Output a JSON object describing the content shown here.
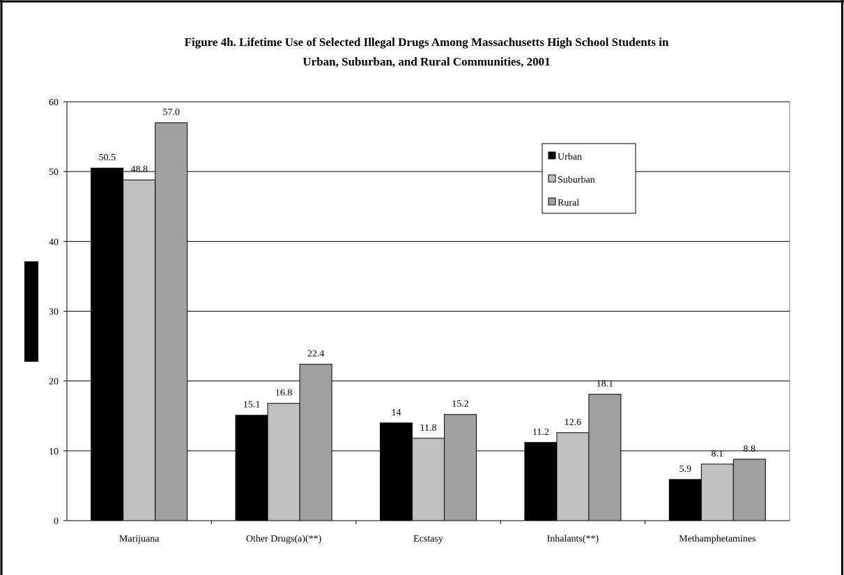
{
  "chart_data": {
    "type": "bar",
    "title": "Figure 4h.  Lifetime Use of Selected Illegal Drugs Among Massachusetts High School Students in",
    "subtitle": "Urban, Suburban, and Rural Communities, 2001",
    "xlabel": "",
    "ylabel": "",
    "categories": [
      "Marijuana",
      "Other Drugs(a)(**)",
      "Ecstasy",
      "Inhalants(**)",
      "Methamphetamines"
    ],
    "series": [
      {
        "name": "Urban",
        "color": "#000000",
        "values": [
          50.5,
          15.1,
          14,
          11.2,
          5.9
        ],
        "labels": [
          "50.5",
          "15.1",
          "14",
          "11.2",
          "5.9"
        ]
      },
      {
        "name": "Suburban",
        "color": "#c0c0c0",
        "values": [
          48.8,
          16.8,
          11.8,
          12.6,
          8.1
        ],
        "labels": [
          "48.8",
          "16.8",
          "11.8",
          "12.6",
          "8.1"
        ]
      },
      {
        "name": "Rural",
        "color": "#a0a0a0",
        "values": [
          57.0,
          22.4,
          15.2,
          18.1,
          8.8
        ],
        "labels": [
          "57.0",
          "22.4",
          "15.2",
          "18.1",
          "8.8"
        ]
      }
    ],
    "ylim": [
      0,
      60
    ],
    "yticks": [
      0,
      10,
      20,
      30,
      40,
      50,
      60
    ],
    "grid": true,
    "legend": "top-right"
  }
}
